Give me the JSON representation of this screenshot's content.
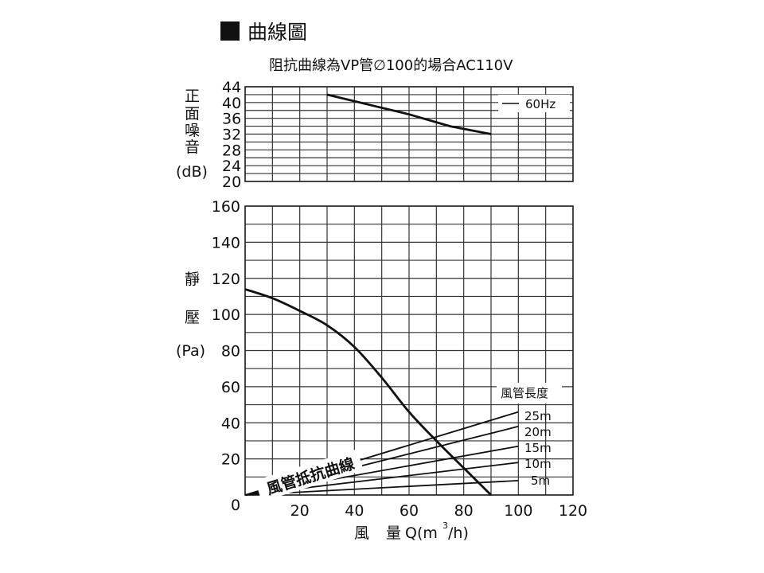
{
  "chart_title": "曲線圖",
  "subtitle": "阻抗曲線為VP管∅100的場合AC110V",
  "chart_data": [
    {
      "type": "line",
      "ylabel": [
        "正",
        "面",
        "噪",
        "音",
        "(dB)"
      ],
      "ylim": [
        20,
        44
      ],
      "y_ticks": [
        20,
        24,
        28,
        32,
        36,
        40,
        44
      ],
      "xlim": [
        0,
        120
      ],
      "grid": true,
      "legend": "top-right",
      "series": [
        {
          "name": "60Hz",
          "x": [
            30,
            45,
            60,
            75,
            90
          ],
          "y": [
            42,
            39.5,
            37,
            34,
            32
          ]
        }
      ]
    },
    {
      "type": "line",
      "ylabel": [
        "靜",
        "壓",
        "(Pa)"
      ],
      "xlabel": [
        "風",
        "量",
        "Q(m",
        "3",
        "/h)"
      ],
      "ylim": [
        0,
        160
      ],
      "y_ticks": [
        0,
        20,
        40,
        60,
        80,
        100,
        120,
        140,
        160
      ],
      "xlim": [
        0,
        120
      ],
      "x_ticks": [
        20,
        40,
        60,
        80,
        100,
        120
      ],
      "grid": true,
      "series": [
        {
          "name": "",
          "x": [
            0,
            10,
            20,
            30,
            40,
            50,
            60,
            70,
            80,
            90
          ],
          "y": [
            114,
            109,
            102,
            94,
            82,
            65,
            46,
            30,
            15,
            0
          ]
        }
      ],
      "duct_curve_label": "風管抵抗曲線",
      "duct_legend_title": "風管長度",
      "duct_curves": [
        {
          "name": "25m",
          "x": [
            0,
            100
          ],
          "y": [
            0,
            46
          ]
        },
        {
          "name": "20m",
          "x": [
            0,
            100
          ],
          "y": [
            0,
            38
          ]
        },
        {
          "name": "15m",
          "x": [
            0,
            100
          ],
          "y": [
            0,
            27
          ]
        },
        {
          "name": "10m",
          "x": [
            0,
            100
          ],
          "y": [
            0,
            18
          ]
        },
        {
          "name": "5m",
          "x": [
            0,
            100
          ],
          "y": [
            0,
            8
          ]
        }
      ]
    }
  ]
}
